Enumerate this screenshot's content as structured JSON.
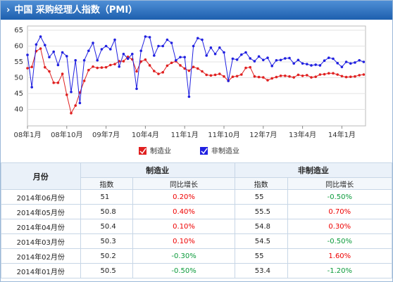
{
  "header": {
    "title": "中国  采购经理人指数（PMI）"
  },
  "chart_data": {
    "type": "line",
    "categories": [
      "08年1月",
      null,
      null,
      null,
      null,
      null,
      null,
      null,
      null,
      "08年10月",
      null,
      null,
      null,
      null,
      null,
      null,
      null,
      null,
      "09年7月",
      null,
      null,
      null,
      null,
      null,
      null,
      null,
      null,
      "10年4月",
      null,
      null,
      null,
      null,
      null,
      null,
      null,
      null,
      "11年1月",
      null,
      null,
      null,
      null,
      null,
      null,
      null,
      null,
      "11年10月",
      null,
      null,
      null,
      null,
      null,
      null,
      null,
      null,
      "12年7月",
      null,
      null,
      null,
      null,
      null,
      null,
      null,
      null,
      "13年4月",
      null,
      null,
      null,
      null,
      null,
      null,
      null,
      null,
      "14年1月",
      null,
      null,
      null,
      null,
      null
    ],
    "series": [
      {
        "name": "制造业",
        "color": "#e02020",
        "values": [
          53.0,
          53.4,
          58.4,
          59.2,
          53.3,
          52.0,
          48.4,
          48.4,
          51.2,
          44.6,
          38.8,
          41.2,
          45.3,
          49.0,
          52.4,
          53.5,
          53.1,
          53.2,
          53.3,
          54.0,
          54.3,
          55.2,
          55.2,
          56.6,
          55.8,
          52.0,
          55.1,
          55.7,
          53.9,
          52.1,
          51.2,
          51.7,
          53.8,
          54.7,
          55.2,
          53.9,
          52.9,
          52.2,
          53.4,
          52.9,
          52.0,
          50.9,
          50.7,
          50.9,
          51.2,
          50.4,
          49.0,
          50.3,
          50.5,
          51.0,
          53.1,
          53.3,
          50.4,
          50.2,
          50.1,
          49.2,
          49.8,
          50.2,
          50.6,
          50.6,
          50.4,
          50.1,
          50.9,
          50.6,
          50.8,
          50.1,
          50.3,
          51.0,
          51.1,
          51.4,
          51.4,
          51.0,
          50.5,
          50.2,
          50.3,
          50.4,
          50.8,
          51
        ]
      },
      {
        "name": "非制造业",
        "color": "#2020e0",
        "values": [
          57.2,
          47,
          60.5,
          63,
          60.3,
          56.5,
          58.2,
          54,
          58,
          56.8,
          45.5,
          55.5,
          42,
          55.5,
          58.5,
          61,
          55.5,
          59,
          60,
          59,
          62,
          53.5,
          57.5,
          56,
          57.5,
          46.5,
          58.5,
          63,
          62.8,
          57,
          60,
          60,
          62,
          61,
          55.5,
          56.5,
          56.5,
          44,
          60,
          62.5,
          62,
          57,
          59.5,
          57.5,
          59.5,
          58,
          49,
          56,
          55.7,
          57.3,
          58,
          56.1,
          55.2,
          56.7,
          55.6,
          56.3,
          53.7,
          55.5,
          55.6,
          56.1,
          56.2,
          54.5,
          55.6,
          54.5,
          54.3,
          53.9,
          54.1,
          53.9,
          55.4,
          56.3,
          56.0,
          54.6,
          53.4,
          55,
          54.5,
          54.8,
          55.5,
          55
        ]
      }
    ],
    "ylim": [
      35,
      65
    ],
    "yticks": [
      40,
      45,
      50,
      55,
      60,
      65
    ],
    "grid": true,
    "legend": "bottom"
  },
  "table": {
    "month": "月份",
    "groups": [
      {
        "name": "制造业",
        "sub": [
          "指数",
          "同比增长"
        ]
      },
      {
        "name": "非制造业",
        "sub": [
          "指数",
          "同比增长"
        ]
      }
    ],
    "rows": [
      [
        "2014年06月份",
        51,
        "0.20%",
        55,
        "-0.50%"
      ],
      [
        "2014年05月份",
        50.8,
        "0.40%",
        55.5,
        "0.70%"
      ],
      [
        "2014年04月份",
        50.4,
        "0.10%",
        54.8,
        "0.30%"
      ],
      [
        "2014年03月份",
        50.3,
        "0.10%",
        54.5,
        "-0.50%"
      ],
      [
        "2014年02月份",
        50.2,
        "-0.30%",
        55,
        "1.60%"
      ],
      [
        "2014年01月份",
        50.5,
        "-0.50%",
        53.4,
        "-1.20%"
      ]
    ]
  }
}
